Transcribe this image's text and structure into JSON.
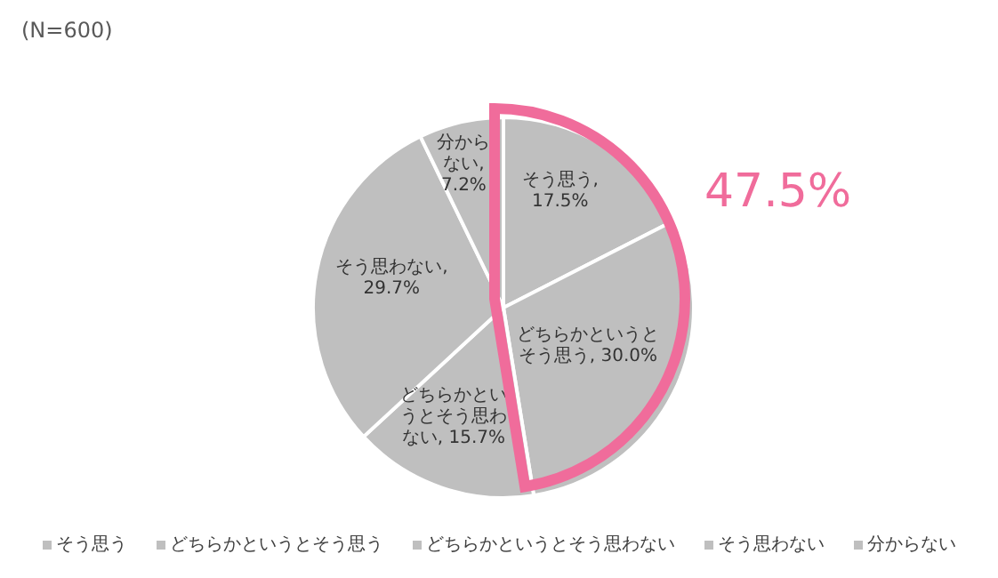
{
  "chart_data": {
    "type": "pie",
    "subtitle": "(N=600)",
    "categories": [
      "そう思う",
      "どちらかというとそう思う",
      "どちらかというとそう思わない",
      "そう思わない",
      "分からない"
    ],
    "values": [
      17.5,
      30.0,
      15.7,
      29.7,
      7.2
    ],
    "colors": [
      "#bfbfbf",
      "#bfbfbf",
      "#bfbfbf",
      "#bfbfbf",
      "#bfbfbf"
    ],
    "value_labels": [
      ", 17.5%",
      ", 30.0%",
      ", 15.7%",
      ", 29.7%",
      ", 7.2%"
    ],
    "legend": "bottom",
    "annotations": [
      "47.5%"
    ]
  }
}
